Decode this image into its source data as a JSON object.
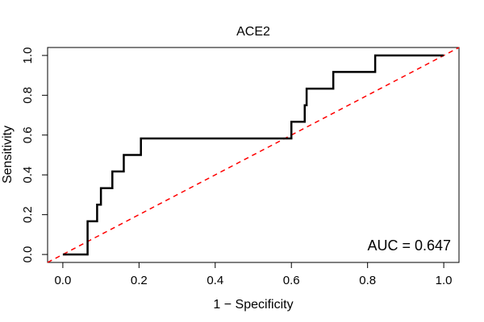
{
  "chart_data": {
    "type": "line",
    "title": "ACE2",
    "xlabel": "1 − Specificity",
    "ylabel": "Sensitivity",
    "xlim": [
      -0.04,
      1.04
    ],
    "ylim": [
      -0.04,
      1.04
    ],
    "xticks": [
      0.0,
      0.2,
      0.4,
      0.6,
      0.8,
      1.0
    ],
    "xtick_labels": [
      "0.0",
      "0.2",
      "0.4",
      "0.6",
      "0.8",
      "1.0"
    ],
    "yticks": [
      0.0,
      0.2,
      0.4,
      0.6,
      0.8,
      1.0
    ],
    "ytick_labels": [
      "0.0",
      "0.2",
      "0.4",
      "0.6",
      "0.8",
      "1.0"
    ],
    "grid": false,
    "annotation": "AUC = 0.647",
    "series": [
      {
        "color": "#000000",
        "style": "solid",
        "x": [
          0.0,
          0.065,
          0.065,
          0.09,
          0.09,
          0.1,
          0.1,
          0.13,
          0.13,
          0.16,
          0.16,
          0.205,
          0.205,
          0.6,
          0.6,
          0.635,
          0.635,
          0.64,
          0.64,
          0.71,
          0.71,
          0.82,
          0.82,
          1.0
        ],
        "y": [
          0.0,
          0.0,
          0.167,
          0.167,
          0.25,
          0.25,
          0.333,
          0.333,
          0.417,
          0.417,
          0.5,
          0.5,
          0.583,
          0.583,
          0.667,
          0.667,
          0.75,
          0.75,
          0.833,
          0.833,
          0.917,
          0.917,
          1.0,
          1.0
        ]
      },
      {
        "color": "#ff0000",
        "style": "dashed",
        "x": [
          -0.04,
          1.04
        ],
        "y": [
          -0.04,
          1.04
        ]
      }
    ]
  }
}
